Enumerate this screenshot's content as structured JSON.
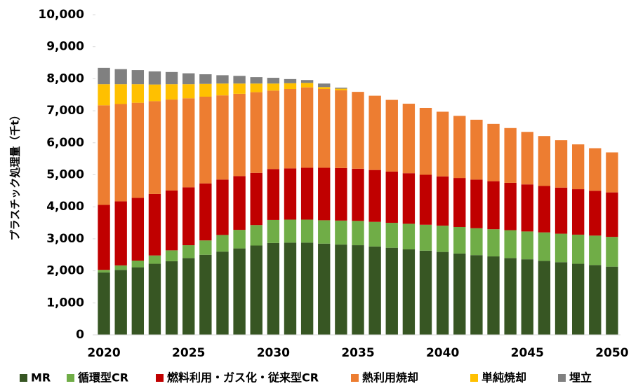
{
  "chart_data": {
    "type": "stacked_bar",
    "y_label": "プラスチック処理量（千t）",
    "categories": [
      "2020",
      null,
      null,
      null,
      null,
      "2025",
      null,
      null,
      null,
      null,
      "2030",
      null,
      null,
      null,
      null,
      "2035",
      null,
      null,
      null,
      null,
      "2040",
      null,
      null,
      null,
      null,
      "2045",
      null,
      null,
      null,
      null,
      "2050"
    ],
    "series": [
      {
        "name": "MR",
        "color": "#375623",
        "values": [
          1950,
          2030,
          2110,
          2220,
          2300,
          2400,
          2500,
          2600,
          2700,
          2790,
          2870,
          2880,
          2880,
          2850,
          2820,
          2800,
          2760,
          2720,
          2670,
          2630,
          2590,
          2540,
          2490,
          2450,
          2400,
          2360,
          2310,
          2270,
          2220,
          2180,
          2130
        ]
      },
      {
        "name": "循環型CR",
        "color": "#70ad47",
        "values": [
          80,
          140,
          210,
          260,
          340,
          400,
          450,
          520,
          580,
          640,
          720,
          720,
          720,
          730,
          750,
          760,
          770,
          780,
          800,
          810,
          820,
          830,
          840,
          850,
          870,
          870,
          890,
          890,
          910,
          920,
          930
        ]
      },
      {
        "name": "燃料利用・ガス化・従来型CR",
        "color": "#c00000",
        "values": [
          2030,
          2000,
          1960,
          1920,
          1870,
          1810,
          1780,
          1730,
          1680,
          1630,
          1590,
          1600,
          1620,
          1640,
          1640,
          1630,
          1620,
          1600,
          1580,
          1560,
          1540,
          1530,
          1520,
          1500,
          1480,
          1470,
          1450,
          1440,
          1420,
          1400,
          1390
        ]
      },
      {
        "name": "熱利用焼却",
        "color": "#ed7d31",
        "values": [
          3110,
          3040,
          2970,
          2900,
          2840,
          2780,
          2710,
          2630,
          2570,
          2520,
          2450,
          2480,
          2510,
          2460,
          2430,
          2400,
          2320,
          2240,
          2170,
          2090,
          2020,
          1940,
          1870,
          1790,
          1710,
          1640,
          1560,
          1480,
          1400,
          1330,
          1250
        ]
      },
      {
        "name": "単純焼却",
        "color": "#ffc000",
        "values": [
          660,
          620,
          580,
          520,
          480,
          440,
          400,
          370,
          320,
          270,
          220,
          180,
          140,
          60,
          50,
          0,
          0,
          0,
          0,
          0,
          0,
          0,
          0,
          0,
          0,
          0,
          0,
          0,
          0,
          0,
          0
        ]
      },
      {
        "name": "埋立",
        "color": "#808080",
        "values": [
          510,
          470,
          440,
          410,
          380,
          340,
          300,
          260,
          240,
          200,
          180,
          130,
          90,
          110,
          30,
          0,
          0,
          0,
          0,
          0,
          0,
          0,
          0,
          0,
          0,
          0,
          0,
          0,
          0,
          0,
          0
        ]
      }
    ],
    "ylim": [
      0,
      10000
    ],
    "yticks": [
      0,
      {
        "value": 1000,
        "label": "1,000"
      },
      {
        "value": 2000,
        "label": "2,000"
      },
      {
        "value": 3000,
        "label": "3,000"
      },
      {
        "value": 4000,
        "label": "4,000"
      },
      {
        "value": 5000,
        "label": "5,000"
      },
      {
        "value": 6000,
        "label": "6,000"
      },
      {
        "value": 7000,
        "label": "7,000"
      },
      {
        "value": 8000,
        "label": "8,000"
      },
      {
        "value": 9000,
        "label": "9,000"
      },
      {
        "value": 10000,
        "label": "10,000"
      }
    ],
    "legend": "bottom"
  }
}
